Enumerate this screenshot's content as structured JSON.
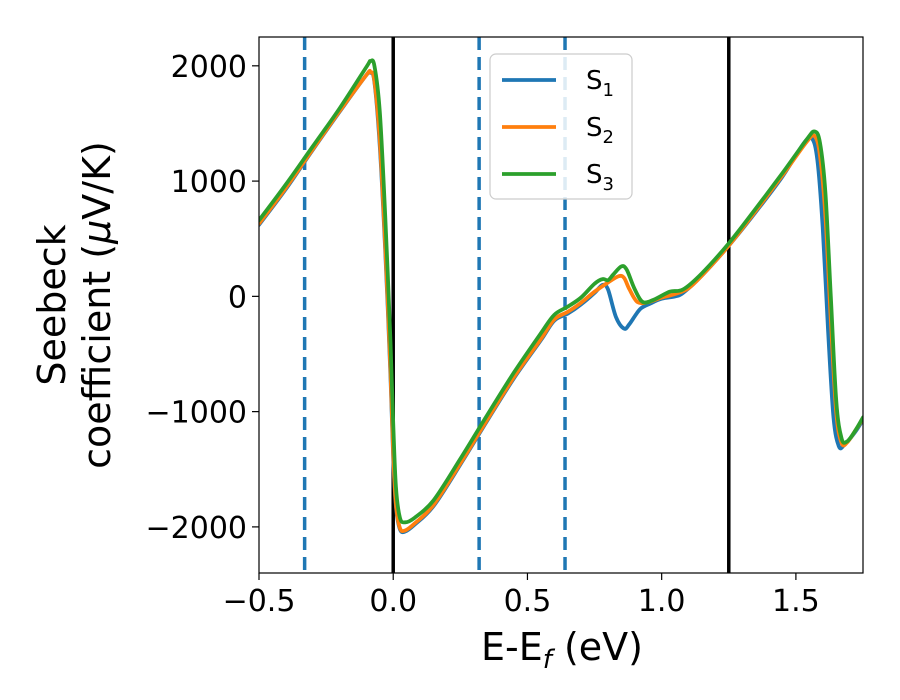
{
  "chart_data": {
    "type": "line",
    "xlabel": {
      "base": "E-E",
      "sub": "f",
      "unit": " (eV)"
    },
    "ylabel": {
      "line1": "Seebeck",
      "line2_pre": "coefficient  (",
      "mu": "μ",
      "line2_post": "V/K)"
    },
    "xlim": [
      -0.5,
      1.75
    ],
    "ylim": [
      -2400,
      2250
    ],
    "xticks": [
      -0.5,
      0.0,
      0.5,
      1.0,
      1.5
    ],
    "xtick_labels": [
      "−0.5",
      "0.0",
      "0.5",
      "1.0",
      "1.5"
    ],
    "yticks": [
      -2000,
      -1000,
      0,
      1000,
      2000
    ],
    "ytick_labels": [
      "−2000",
      "−1000",
      "0",
      "1000",
      "2000"
    ],
    "grid": false,
    "legend_position": "top-center",
    "vlines_solid": [
      0.0,
      1.25
    ],
    "vlines_dashed": [
      -0.33,
      0.32,
      0.64
    ],
    "vline_solid_color": "#000000",
    "vline_dashed_color": "#1f77b4",
    "series": [
      {
        "name": "S",
        "sub": "1",
        "color": "#1f77b4",
        "points": [
          [
            -0.5,
            620
          ],
          [
            -0.4,
            930
          ],
          [
            -0.3,
            1270
          ],
          [
            -0.2,
            1600
          ],
          [
            -0.1,
            1920
          ],
          [
            -0.085,
            1940
          ],
          [
            -0.07,
            1860
          ],
          [
            -0.05,
            1300
          ],
          [
            -0.03,
            400
          ],
          [
            -0.01,
            -700
          ],
          [
            0.0,
            -1400
          ],
          [
            0.01,
            -1820
          ],
          [
            0.025,
            -2020
          ],
          [
            0.045,
            -2040
          ],
          [
            0.08,
            -1980
          ],
          [
            0.15,
            -1820
          ],
          [
            0.25,
            -1460
          ],
          [
            0.35,
            -1080
          ],
          [
            0.45,
            -710
          ],
          [
            0.55,
            -380
          ],
          [
            0.6,
            -210
          ],
          [
            0.65,
            -150
          ],
          [
            0.7,
            -70
          ],
          [
            0.75,
            30
          ],
          [
            0.78,
            100
          ],
          [
            0.8,
            60
          ],
          [
            0.83,
            -180
          ],
          [
            0.86,
            -280
          ],
          [
            0.88,
            -240
          ],
          [
            0.92,
            -110
          ],
          [
            0.96,
            -60
          ],
          [
            1.0,
            -20
          ],
          [
            1.05,
            0
          ],
          [
            1.08,
            30
          ],
          [
            1.15,
            180
          ],
          [
            1.25,
            440
          ],
          [
            1.35,
            730
          ],
          [
            1.45,
            1040
          ],
          [
            1.53,
            1330
          ],
          [
            1.56,
            1370
          ],
          [
            1.58,
            1180
          ],
          [
            1.6,
            600
          ],
          [
            1.62,
            -300
          ],
          [
            1.64,
            -1050
          ],
          [
            1.66,
            -1300
          ],
          [
            1.68,
            -1290
          ],
          [
            1.72,
            -1180
          ],
          [
            1.75,
            -1070
          ]
        ]
      },
      {
        "name": "S",
        "sub": "2",
        "color": "#ff7f0e",
        "points": [
          [
            -0.5,
            630
          ],
          [
            -0.4,
            940
          ],
          [
            -0.3,
            1275
          ],
          [
            -0.2,
            1605
          ],
          [
            -0.1,
            1920
          ],
          [
            -0.085,
            1945
          ],
          [
            -0.07,
            1870
          ],
          [
            -0.05,
            1350
          ],
          [
            -0.03,
            450
          ],
          [
            -0.01,
            -650
          ],
          [
            0.0,
            -1350
          ],
          [
            0.01,
            -1800
          ],
          [
            0.025,
            -2010
          ],
          [
            0.045,
            -2030
          ],
          [
            0.08,
            -1970
          ],
          [
            0.15,
            -1810
          ],
          [
            0.25,
            -1450
          ],
          [
            0.35,
            -1070
          ],
          [
            0.45,
            -700
          ],
          [
            0.55,
            -370
          ],
          [
            0.6,
            -200
          ],
          [
            0.65,
            -135
          ],
          [
            0.7,
            -55
          ],
          [
            0.75,
            40
          ],
          [
            0.8,
            120
          ],
          [
            0.84,
            175
          ],
          [
            0.86,
            160
          ],
          [
            0.88,
            60
          ],
          [
            0.91,
            -50
          ],
          [
            0.95,
            -50
          ],
          [
            1.0,
            -10
          ],
          [
            1.05,
            20
          ],
          [
            1.1,
            70
          ],
          [
            1.15,
            180
          ],
          [
            1.25,
            440
          ],
          [
            1.35,
            740
          ],
          [
            1.45,
            1050
          ],
          [
            1.54,
            1340
          ],
          [
            1.57,
            1390
          ],
          [
            1.59,
            1220
          ],
          [
            1.61,
            700
          ],
          [
            1.63,
            -200
          ],
          [
            1.65,
            -1000
          ],
          [
            1.67,
            -1270
          ],
          [
            1.69,
            -1270
          ],
          [
            1.72,
            -1170
          ],
          [
            1.75,
            -1060
          ]
        ]
      },
      {
        "name": "S",
        "sub": "3",
        "color": "#2ca02c",
        "points": [
          [
            -0.5,
            660
          ],
          [
            -0.4,
            970
          ],
          [
            -0.3,
            1300
          ],
          [
            -0.2,
            1630
          ],
          [
            -0.1,
            1990
          ],
          [
            -0.085,
            2040
          ],
          [
            -0.07,
            2000
          ],
          [
            -0.05,
            1600
          ],
          [
            -0.03,
            700
          ],
          [
            -0.01,
            -400
          ],
          [
            0.0,
            -1100
          ],
          [
            0.01,
            -1650
          ],
          [
            0.025,
            -1920
          ],
          [
            0.045,
            -1960
          ],
          [
            0.08,
            -1920
          ],
          [
            0.15,
            -1770
          ],
          [
            0.25,
            -1410
          ],
          [
            0.35,
            -1030
          ],
          [
            0.45,
            -660
          ],
          [
            0.55,
            -320
          ],
          [
            0.6,
            -160
          ],
          [
            0.65,
            -90
          ],
          [
            0.7,
            -10
          ],
          [
            0.75,
            110
          ],
          [
            0.78,
            150
          ],
          [
            0.8,
            140
          ],
          [
            0.82,
            190
          ],
          [
            0.85,
            260
          ],
          [
            0.87,
            230
          ],
          [
            0.9,
            60
          ],
          [
            0.93,
            -50
          ],
          [
            0.97,
            -30
          ],
          [
            1.03,
            40
          ],
          [
            1.08,
            60
          ],
          [
            1.15,
            200
          ],
          [
            1.25,
            460
          ],
          [
            1.35,
            760
          ],
          [
            1.45,
            1070
          ],
          [
            1.54,
            1360
          ],
          [
            1.57,
            1430
          ],
          [
            1.59,
            1330
          ],
          [
            1.61,
            900
          ],
          [
            1.63,
            0
          ],
          [
            1.65,
            -900
          ],
          [
            1.67,
            -1230
          ],
          [
            1.69,
            -1260
          ],
          [
            1.72,
            -1170
          ],
          [
            1.75,
            -1050
          ]
        ]
      }
    ]
  }
}
